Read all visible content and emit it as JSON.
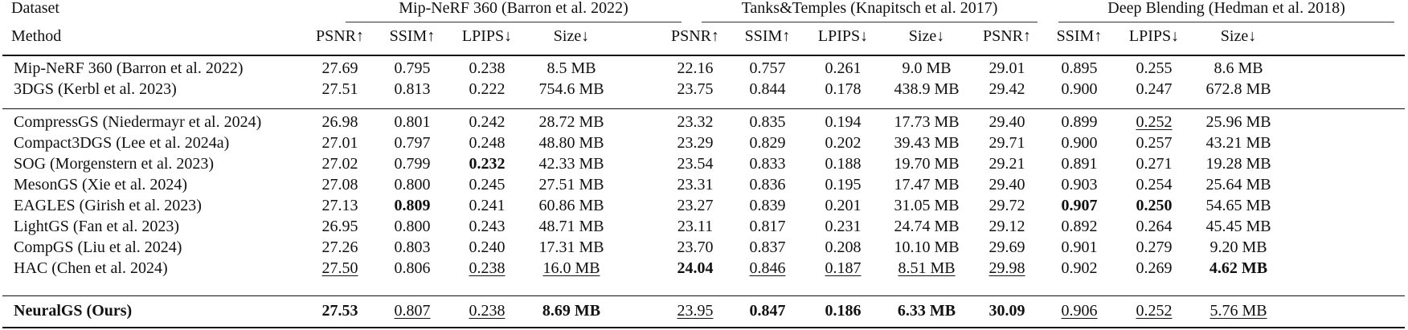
{
  "header": {
    "dataset_label": "Dataset",
    "method_label": "Method",
    "groups": [
      {
        "name": "Mip-NeRF 360 (Barron et al. 2022)"
      },
      {
        "name": "Tanks&Temples (Knapitsch et al. 2017)"
      },
      {
        "name": "Deep Blending (Hedman et al. 2018)"
      }
    ],
    "metrics": [
      "PSNR↑",
      "SSIM↑",
      "LPIPS↓",
      "Size↓"
    ]
  },
  "baselines": [
    {
      "method": "Mip-NeRF 360 (Barron et al. 2022)",
      "values": [
        "27.69",
        "0.795",
        "0.238",
        "8.5 MB",
        "22.16",
        "0.757",
        "0.261",
        "9.0 MB",
        "29.01",
        "0.895",
        "0.255",
        "8.6 MB"
      ]
    },
    {
      "method": "3DGS (Kerbl et al. 2023)",
      "values": [
        "27.51",
        "0.813",
        "0.222",
        "754.6 MB",
        "23.75",
        "0.844",
        "0.178",
        "438.9 MB",
        "29.42",
        "0.900",
        "0.247",
        "672.8 MB"
      ]
    }
  ],
  "compression": [
    {
      "method": "CompressGS (Niedermayr et al. 2024)",
      "values": [
        "26.98",
        "0.801",
        "0.242",
        "28.72 MB",
        "23.32",
        "0.835",
        "0.194",
        "17.73 MB",
        "29.40",
        "0.899",
        "0.252",
        "25.96 MB"
      ]
    },
    {
      "method": "Compact3DGS (Lee et al. 2024a)",
      "values": [
        "27.01",
        "0.797",
        "0.248",
        "48.80 MB",
        "23.29",
        "0.829",
        "0.202",
        "39.43 MB",
        "29.71",
        "0.900",
        "0.257",
        "43.21 MB"
      ]
    },
    {
      "method": "SOG (Morgenstern et al. 2023)",
      "values": [
        "27.02",
        "0.799",
        "0.232",
        "42.33 MB",
        "23.54",
        "0.833",
        "0.188",
        "19.70 MB",
        "29.21",
        "0.891",
        "0.271",
        "19.28 MB"
      ]
    },
    {
      "method": "MesonGS (Xie et al. 2024)",
      "values": [
        "27.08",
        "0.800",
        "0.245",
        "27.51 MB",
        "23.31",
        "0.836",
        "0.195",
        "17.47 MB",
        "29.40",
        "0.903",
        "0.254",
        "25.64 MB"
      ]
    },
    {
      "method": "EAGLES (Girish et al. 2023)",
      "values": [
        "27.13",
        "0.809",
        "0.241",
        "60.86 MB",
        "23.27",
        "0.839",
        "0.201",
        "31.05 MB",
        "29.72",
        "0.907",
        "0.250",
        "54.65 MB"
      ]
    },
    {
      "method": "LightGS (Fan et al. 2023)",
      "values": [
        "26.95",
        "0.800",
        "0.243",
        "48.71 MB",
        "23.11",
        "0.817",
        "0.231",
        "24.74 MB",
        "29.12",
        "0.892",
        "0.264",
        "45.45 MB"
      ]
    },
    {
      "method": "CompGS (Liu et al. 2024)",
      "values": [
        "27.26",
        "0.803",
        "0.240",
        "17.31 MB",
        "23.70",
        "0.837",
        "0.208",
        "10.10 MB",
        "29.69",
        "0.901",
        "0.279",
        "9.20 MB"
      ]
    },
    {
      "method": "HAC (Chen et al. 2024)",
      "values": [
        "27.50",
        "0.806",
        "0.238",
        "16.0 MB",
        "24.04",
        "0.846",
        "0.187",
        "8.51 MB",
        "29.98",
        "0.902",
        "0.269",
        "4.62 MB"
      ]
    }
  ],
  "ours": {
    "method": "NeuralGS (Ours)",
    "values": [
      "27.53",
      "0.807",
      "0.238",
      "8.69 MB",
      "23.95",
      "0.847",
      "0.186",
      "6.33 MB",
      "30.09",
      "0.906",
      "0.252",
      "5.76 MB"
    ]
  },
  "formatting": {
    "bold": {
      "SOG (Morgenstern et al. 2023)": [
        2
      ],
      "EAGLES (Girish et al. 2023)": [
        1,
        9,
        10
      ],
      "HAC (Chen et al. 2024)": [
        4,
        11
      ],
      "NeuralGS (Ours)": [
        0,
        3,
        5,
        6,
        7,
        8
      ]
    },
    "underline": {
      "CompressGS (Niedermayr et al. 2024)": [
        10
      ],
      "HAC (Chen et al. 2024)": [
        0,
        2,
        3,
        5,
        6,
        7,
        8
      ],
      "NeuralGS (Ours)": [
        1,
        2,
        4,
        9,
        10,
        11
      ]
    },
    "legend": {
      "bold": "best",
      "underline": "second best"
    }
  }
}
